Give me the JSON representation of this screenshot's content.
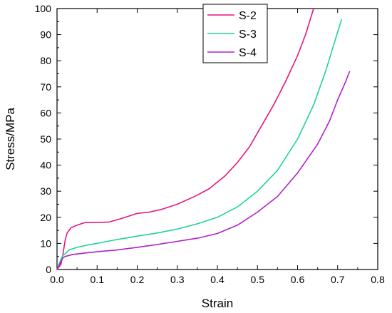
{
  "chart_data": {
    "type": "line",
    "xlabel": "Strain",
    "ylabel": "Stress/MPa",
    "xlim": [
      0,
      0.8
    ],
    "ylim": [
      0,
      100
    ],
    "x_ticks": [
      "0.0",
      "0.1",
      "0.2",
      "0.3",
      "0.4",
      "0.5",
      "0.6",
      "0.7",
      "0.8"
    ],
    "y_ticks": [
      "0",
      "10",
      "20",
      "30",
      "40",
      "50",
      "60",
      "70",
      "80",
      "90",
      "100"
    ],
    "grid": false,
    "legend_position": "top-center",
    "series": [
      {
        "name": "S-2",
        "color": "#e8157f",
        "points": [
          [
            0,
            0
          ],
          [
            0.01,
            2
          ],
          [
            0.015,
            6
          ],
          [
            0.02,
            11
          ],
          [
            0.025,
            14
          ],
          [
            0.035,
            16
          ],
          [
            0.05,
            17
          ],
          [
            0.07,
            18
          ],
          [
            0.1,
            18
          ],
          [
            0.13,
            18.2
          ],
          [
            0.16,
            19.5
          ],
          [
            0.2,
            21.5
          ],
          [
            0.23,
            22
          ],
          [
            0.26,
            23
          ],
          [
            0.3,
            25
          ],
          [
            0.35,
            28.5
          ],
          [
            0.38,
            31
          ],
          [
            0.42,
            36
          ],
          [
            0.45,
            41
          ],
          [
            0.48,
            47
          ],
          [
            0.51,
            55
          ],
          [
            0.54,
            63
          ],
          [
            0.57,
            72
          ],
          [
            0.6,
            82
          ],
          [
            0.62,
            90
          ],
          [
            0.64,
            100
          ]
        ]
      },
      {
        "name": "S-3",
        "color": "#1fd39a",
        "points": [
          [
            0,
            0
          ],
          [
            0.005,
            2
          ],
          [
            0.01,
            4
          ],
          [
            0.015,
            5.5
          ],
          [
            0.02,
            6
          ],
          [
            0.03,
            7.5
          ],
          [
            0.05,
            8.5
          ],
          [
            0.08,
            9.5
          ],
          [
            0.1,
            10
          ],
          [
            0.15,
            11.5
          ],
          [
            0.2,
            12.8
          ],
          [
            0.25,
            14
          ],
          [
            0.3,
            15.5
          ],
          [
            0.35,
            17.5
          ],
          [
            0.4,
            20
          ],
          [
            0.45,
            24
          ],
          [
            0.5,
            30
          ],
          [
            0.55,
            38
          ],
          [
            0.6,
            50
          ],
          [
            0.64,
            63
          ],
          [
            0.67,
            76
          ],
          [
            0.69,
            86
          ],
          [
            0.71,
            96
          ]
        ]
      },
      {
        "name": "S-4",
        "color": "#b021c9",
        "points": [
          [
            0,
            0
          ],
          [
            0.005,
            1.5
          ],
          [
            0.01,
            3
          ],
          [
            0.015,
            4.5
          ],
          [
            0.02,
            5
          ],
          [
            0.04,
            5.8
          ],
          [
            0.07,
            6.3
          ],
          [
            0.1,
            6.8
          ],
          [
            0.15,
            7.5
          ],
          [
            0.2,
            8.5
          ],
          [
            0.25,
            9.6
          ],
          [
            0.3,
            10.8
          ],
          [
            0.35,
            12
          ],
          [
            0.4,
            13.8
          ],
          [
            0.45,
            17
          ],
          [
            0.5,
            22
          ],
          [
            0.55,
            28
          ],
          [
            0.6,
            37
          ],
          [
            0.65,
            48
          ],
          [
            0.68,
            57
          ],
          [
            0.7,
            65
          ],
          [
            0.72,
            72
          ],
          [
            0.73,
            76
          ]
        ]
      }
    ]
  }
}
